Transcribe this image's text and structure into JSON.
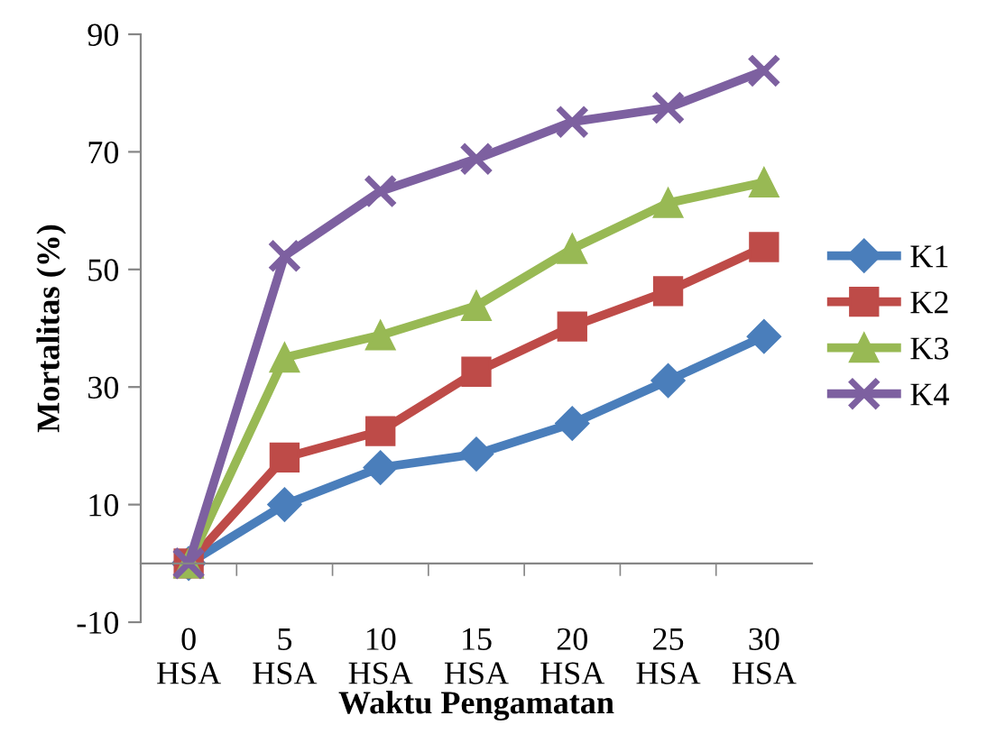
{
  "chart_data": {
    "type": "line",
    "xlabel": "Waktu Pengamatan",
    "ylabel": "Mortalitas (%)",
    "categories": [
      "0\nHSA",
      "5\nHSA",
      "10\nHSA",
      "15\nHSA",
      "20\nHSA",
      "25\nHSA",
      "30\nHSA"
    ],
    "series": [
      {
        "name": "K1",
        "color": "#4a7ebb",
        "marker": "diamond",
        "values": [
          0,
          10,
          16.3,
          18.6,
          23.8,
          31.1,
          38.6
        ]
      },
      {
        "name": "K2",
        "color": "#be4b48",
        "marker": "square",
        "values": [
          0,
          18,
          22.5,
          32.6,
          40.3,
          46.3,
          53.8
        ]
      },
      {
        "name": "K3",
        "color": "#98b954",
        "marker": "triangle",
        "values": [
          0,
          35,
          38.8,
          43.8,
          53.5,
          61.3,
          64.8
        ]
      },
      {
        "name": "K4",
        "color": "#7d60a0",
        "marker": "cross",
        "values": [
          0,
          52.3,
          63.3,
          68.8,
          75.1,
          77.5,
          83.8
        ]
      }
    ],
    "ylim": [
      -10,
      90
    ],
    "yticks": [
      -10,
      10,
      30,
      50,
      70,
      90
    ],
    "grid": false,
    "legend": "right",
    "line_style": "solid"
  }
}
